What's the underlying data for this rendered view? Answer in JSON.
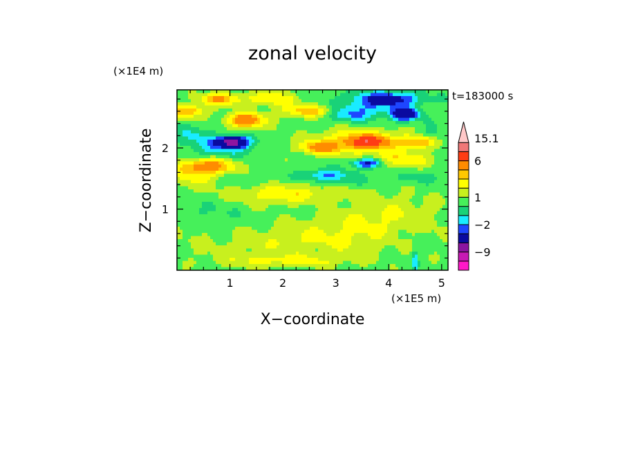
{
  "chart_data": {
    "type": "heatmap",
    "title": "zonal velocity",
    "xlabel": "X−coordinate",
    "ylabel": "Z−coordinate",
    "x_scale_label": "(×1E5 m)",
    "y_scale_label": "(×1E4 m)",
    "time_label": "t=183000 s",
    "xlim": [
      0,
      5.12
    ],
    "ylim": [
      0,
      2.95
    ],
    "x_ticks": [
      1,
      2,
      3,
      4,
      5
    ],
    "x_tick_labels": [
      "1",
      "2",
      "3",
      "4",
      "5"
    ],
    "y_ticks": [
      1,
      2
    ],
    "y_tick_labels": [
      "1",
      "2"
    ],
    "colorbar": {
      "levels": [
        -15,
        -12,
        -9,
        -6,
        -3,
        -2,
        -1,
        0,
        1,
        2,
        3,
        4,
        6,
        9,
        12,
        15.1
      ],
      "colors": [
        "#ff19c8",
        "#c819b4",
        "#8c14a0",
        "#0a0aa0",
        "#1e46ff",
        "#19ebff",
        "#19d278",
        "#46f05a",
        "#c8f01e",
        "#ffff00",
        "#ffc800",
        "#ff8c00",
        "#ff3c14",
        "#f07878",
        "#ffc8c8"
      ],
      "tick_labels": [
        {
          "value": -9,
          "label": "−9"
        },
        {
          "value": -2,
          "label": "−2"
        },
        {
          "value": 1,
          "label": "1"
        },
        {
          "value": 6,
          "label": "6"
        },
        {
          "value": 15.1,
          "label": "15.1"
        }
      ],
      "extend": "max"
    },
    "field": {
      "background_value": 0.5,
      "features": [
        {
          "x": 2.3,
          "z": 0.45,
          "rx": 2.0,
          "rz": 0.28,
          "v": 1.8
        },
        {
          "x": 3.8,
          "z": 0.9,
          "rx": 1.2,
          "rz": 0.35,
          "v": 1.6
        },
        {
          "x": 1.3,
          "z": 0.5,
          "rx": 0.8,
          "rz": 0.2,
          "v": -0.6
        },
        {
          "x": 2.5,
          "z": 0.35,
          "rx": 0.6,
          "rz": 0.12,
          "v": -0.6
        },
        {
          "x": 0.6,
          "z": 0.95,
          "rx": 0.7,
          "rz": 0.18,
          "v": -0.6
        },
        {
          "x": 2.8,
          "z": 1.05,
          "rx": 0.7,
          "rz": 0.15,
          "v": -0.6
        },
        {
          "x": 4.3,
          "z": 0.5,
          "rx": 0.5,
          "rz": 0.2,
          "v": -0.6
        },
        {
          "x": 2.0,
          "z": 1.25,
          "rx": 1.0,
          "rz": 0.18,
          "v": 2.2
        },
        {
          "x": 0.3,
          "z": 1.55,
          "rx": 0.5,
          "rz": 0.2,
          "v": 1.8
        },
        {
          "x": 0.6,
          "z": 1.7,
          "rx": 0.5,
          "rz": 0.12,
          "v": 4.0
        },
        {
          "x": 1.4,
          "z": 1.45,
          "rx": 0.6,
          "rz": 0.12,
          "v": -0.6
        },
        {
          "x": 3.2,
          "z": 1.45,
          "rx": 0.7,
          "rz": 0.12,
          "v": -0.6
        },
        {
          "x": 2.8,
          "z": 1.55,
          "rx": 0.45,
          "rz": 0.1,
          "v": -2.5
        },
        {
          "x": 4.5,
          "z": 1.5,
          "rx": 0.4,
          "rz": 0.1,
          "v": -0.8
        },
        {
          "x": 3.5,
          "z": 2.1,
          "rx": 0.9,
          "rz": 0.2,
          "v": 3.2
        },
        {
          "x": 3.6,
          "z": 2.1,
          "rx": 0.35,
          "rz": 0.09,
          "v": 5.0
        },
        {
          "x": 2.7,
          "z": 2.0,
          "rx": 0.35,
          "rz": 0.1,
          "v": 3.5
        },
        {
          "x": 3.6,
          "z": 1.75,
          "rx": 0.3,
          "rz": 0.08,
          "v": -4.5
        },
        {
          "x": 0.85,
          "z": 2.0,
          "rx": 0.55,
          "rz": 0.14,
          "v": -2.0
        },
        {
          "x": 1.05,
          "z": 2.1,
          "rx": 0.3,
          "rz": 0.09,
          "v": -7.0
        },
        {
          "x": 0.3,
          "z": 2.2,
          "rx": 0.4,
          "rz": 0.15,
          "v": -1.5
        },
        {
          "x": 1.3,
          "z": 2.45,
          "rx": 0.35,
          "rz": 0.12,
          "v": 5.0
        },
        {
          "x": 0.2,
          "z": 2.6,
          "rx": 0.35,
          "rz": 0.1,
          "v": 3.5
        },
        {
          "x": 2.5,
          "z": 2.6,
          "rx": 0.5,
          "rz": 0.1,
          "v": 3.2
        },
        {
          "x": 3.3,
          "z": 2.55,
          "rx": 0.5,
          "rz": 0.12,
          "v": -2.5
        },
        {
          "x": 3.6,
          "z": 2.7,
          "rx": 0.7,
          "rz": 0.15,
          "v": -1.2
        },
        {
          "x": 4.3,
          "z": 2.55,
          "rx": 0.25,
          "rz": 0.1,
          "v": -6.0
        },
        {
          "x": 4.0,
          "z": 2.8,
          "rx": 0.6,
          "rz": 0.12,
          "v": -4.0
        },
        {
          "x": 4.8,
          "z": 2.2,
          "rx": 0.3,
          "rz": 0.15,
          "v": -1.2
        },
        {
          "x": 4.6,
          "z": 2.1,
          "rx": 0.3,
          "rz": 0.1,
          "v": 3.5
        },
        {
          "x": 1.8,
          "z": 2.8,
          "rx": 0.5,
          "rz": 0.12,
          "v": 2.3
        },
        {
          "x": 0.8,
          "z": 2.8,
          "rx": 0.4,
          "rz": 0.1,
          "v": 3.5
        },
        {
          "x": 4.2,
          "z": 1.8,
          "rx": 0.6,
          "rz": 0.12,
          "v": 2.3
        },
        {
          "x": 4.5,
          "z": 0.15,
          "rx": 0.05,
          "rz": 0.18,
          "v": -2.5
        },
        {
          "x": 2.0,
          "z": 0.15,
          "rx": 1.2,
          "rz": 0.1,
          "v": 1.5
        }
      ]
    }
  }
}
